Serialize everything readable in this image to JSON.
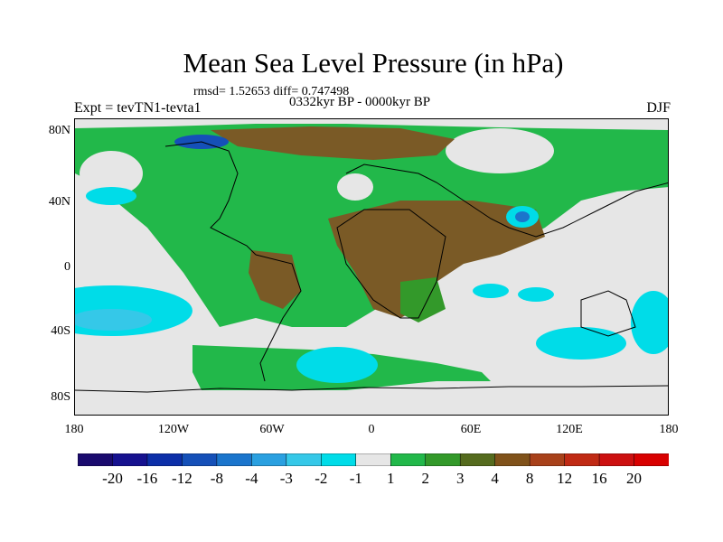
{
  "title": "Mean Sea Level Pressure (in hPa)",
  "stats": "rmsd= 1.52653 diff= 0.747498",
  "period": "0332kyr BP - 0000kyr BP",
  "experiment": "Expt = tevTN1-tevta1",
  "season": "DJF",
  "map": {
    "lat_labels": [
      "80N",
      "40N",
      "0",
      "40S",
      "80S"
    ],
    "lon_labels": [
      "180",
      "120W",
      "60W",
      "0",
      "60E",
      "120E",
      "180"
    ]
  },
  "legend": {
    "labels": [
      "-20",
      "-16",
      "-12",
      "-8",
      "-4",
      "-3",
      "-2",
      "-1",
      "1",
      "2",
      "3",
      "4",
      "8",
      "12",
      "16",
      "20"
    ],
    "colors": [
      "#1a0a6e",
      "#16118f",
      "#0c2fa8",
      "#1550b8",
      "#1b75cc",
      "#2aa0e0",
      "#35c8e8",
      "#00dce8",
      "#e6e6e6",
      "#22b84a",
      "#33992a",
      "#556b1e",
      "#80521a",
      "#a8411a",
      "#c02a14",
      "#cc1010",
      "#d80000"
    ]
  },
  "colors": {
    "neutral": "#e6e6e6",
    "green": "#22b84a",
    "olive": "#33992a",
    "brown": "#7a5a26",
    "cyan": "#00dce8",
    "light_blue": "#35c8e8",
    "blue": "#1b75cc"
  }
}
